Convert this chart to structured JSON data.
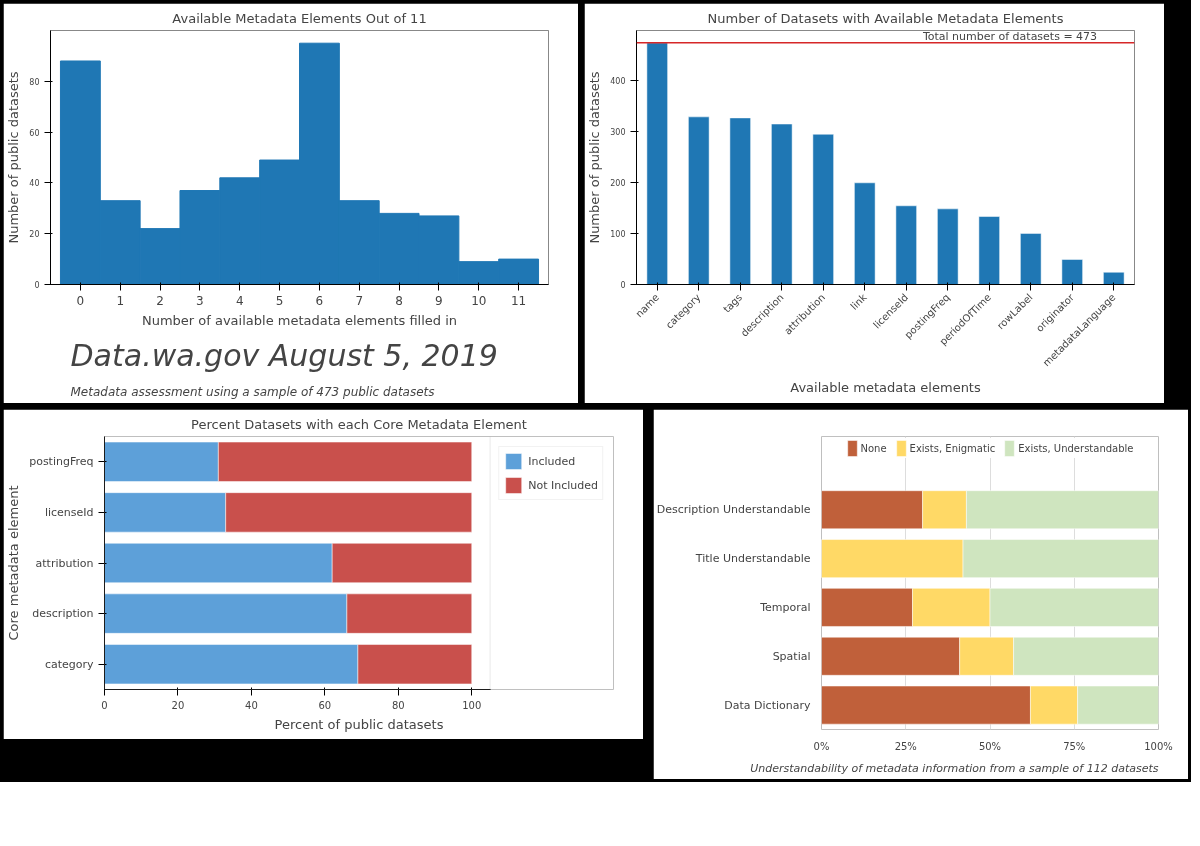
{
  "chart_data": [
    {
      "type": "histogram",
      "title": "Available Metadata Elements Out of 11",
      "xlabel": "Number of available metadata elements filled in",
      "ylabel": "Number of public datasets",
      "bins": [
        -0.5,
        0.5,
        1.5,
        2.5,
        3.5,
        4.5,
        5.5,
        6.5,
        7.5,
        8.5,
        9.5,
        10.5,
        11.5
      ],
      "values": [
        88,
        33,
        22,
        37,
        42,
        49,
        95,
        33,
        28,
        27,
        9,
        10
      ],
      "color": "#1f77b4",
      "xlim": [
        -0.75,
        11.75
      ],
      "xticks": [
        0,
        1,
        2,
        3,
        4,
        5,
        6,
        7,
        8,
        9,
        10,
        11
      ],
      "ylim": [
        0,
        100
      ],
      "yticks": [
        0,
        20,
        40,
        60,
        80
      ],
      "annotations": [
        "Data.wa.gov August 5, 2019",
        "Metadata assessment using a sample of 473 public datasets"
      ]
    },
    {
      "type": "bar",
      "title": "Number of Datasets with Available Metadata Elements",
      "xlabel": "Available metadata elements",
      "ylabel": "Number of public datasets",
      "categories": [
        "name",
        "category",
        "tags",
        "description",
        "attribution",
        "link",
        "licenseId",
        "postingFreq",
        "periodOfTime",
        "rowLabel",
        "originator",
        "metadataLanguage"
      ],
      "values": [
        473,
        328,
        326,
        314,
        294,
        199,
        154,
        148,
        133,
        100,
        49,
        24
      ],
      "color": "#1f77b4",
      "ylim": [
        0,
        497
      ],
      "yticks": [
        0,
        100,
        200,
        300,
        400
      ],
      "ref_lines": [
        {
          "axis": "y",
          "value": 473,
          "label": "Total number of datasets = 473",
          "color": "#d62728"
        }
      ]
    },
    {
      "type": "bar",
      "orientation": "horizontal",
      "stacked": true,
      "title": "Percent Datasets with each Core Metadata Element",
      "xlabel": "Percent of public datasets",
      "ylabel": "Core metadata element",
      "categories": [
        "postingFreq",
        "licenseId",
        "attribution",
        "description",
        "category"
      ],
      "series": [
        {
          "name": "Included",
          "color": "#5da0d9",
          "values": [
            31,
            33,
            62,
            66,
            69
          ]
        },
        {
          "name": "Not Included",
          "color": "#c9504c",
          "values": [
            69,
            67,
            38,
            34,
            31
          ]
        }
      ],
      "xlim": [
        0,
        105
      ],
      "xticks": [
        0,
        20,
        40,
        60,
        80,
        100
      ],
      "legend": "right"
    },
    {
      "type": "bar",
      "orientation": "horizontal",
      "stacked": true,
      "categories": [
        "Description Understandable",
        "Title Understandable",
        "Temporal",
        "Spatial",
        "Data Dictionary"
      ],
      "series": [
        {
          "name": "None",
          "color": "#c0603a",
          "values": [
            30,
            0,
            27,
            41,
            62
          ]
        },
        {
          "name": "Exists, Enigmatic",
          "color": "#ffd966",
          "values": [
            13,
            42,
            23,
            16,
            14
          ]
        },
        {
          "name": "Exists, Understandable",
          "color": "#cfe5bf",
          "values": [
            57,
            58,
            50,
            43,
            24
          ]
        }
      ],
      "xlim": [
        0,
        100
      ],
      "xticks": [
        {
          "value": 0,
          "label": "0%"
        },
        {
          "value": 25,
          "label": "25%"
        },
        {
          "value": 50,
          "label": "50%"
        },
        {
          "value": 75,
          "label": "75%"
        },
        {
          "value": 100,
          "label": "100%"
        }
      ],
      "grid": "x",
      "legend": "top",
      "annotations": [
        "Understandability of metadata information from a sample of 112 datasets"
      ]
    }
  ]
}
